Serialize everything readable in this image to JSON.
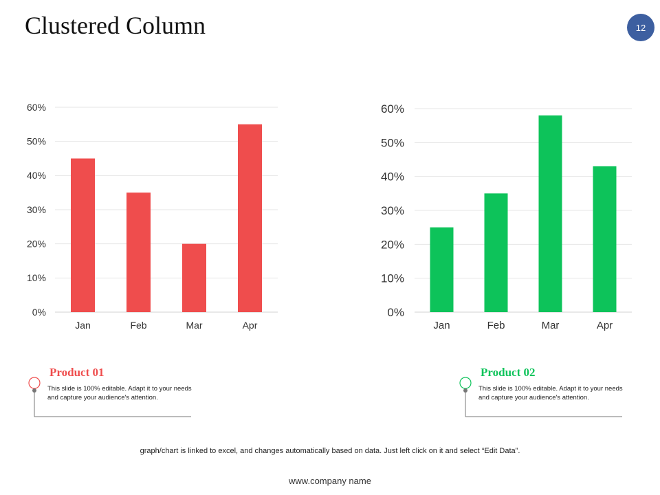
{
  "slide": {
    "title": "Clustered Column",
    "page_number": "12",
    "footer_note": "graph/chart  is linked to excel, and changes automatically based on data. Just left click on it and select “Edit Data”.",
    "company": "www.company name"
  },
  "colors": {
    "product1": "#ef4d4d",
    "product2": "#0dc35a",
    "badge": "#3d5fa0",
    "grid": "#e6e6e6"
  },
  "products": [
    {
      "title": "Product 01",
      "desc": "This slide is 100% editable.  Adapt it to your needs and capture your audience's attention."
    },
    {
      "title": "Product 02",
      "desc": "This slide is 100% editable.  Adapt it to your needs and capture your audience's attention."
    }
  ],
  "chart_data": [
    {
      "type": "bar",
      "series_name": "Product 01",
      "categories": [
        "Jan",
        "Feb",
        "Mar",
        "Apr"
      ],
      "values": [
        45,
        35,
        20,
        55
      ],
      "ylim": [
        0,
        60
      ],
      "y_ticks": [
        "0%",
        "10%",
        "20%",
        "30%",
        "40%",
        "50%",
        "60%"
      ],
      "grid": true
    },
    {
      "type": "bar",
      "series_name": "Product 02",
      "categories": [
        "Jan",
        "Feb",
        "Mar",
        "Apr"
      ],
      "values": [
        25,
        35,
        58,
        43
      ],
      "ylim": [
        0,
        60
      ],
      "y_ticks": [
        "0%",
        "10%",
        "20%",
        "30%",
        "40%",
        "50%",
        "60%"
      ],
      "grid": true
    }
  ]
}
